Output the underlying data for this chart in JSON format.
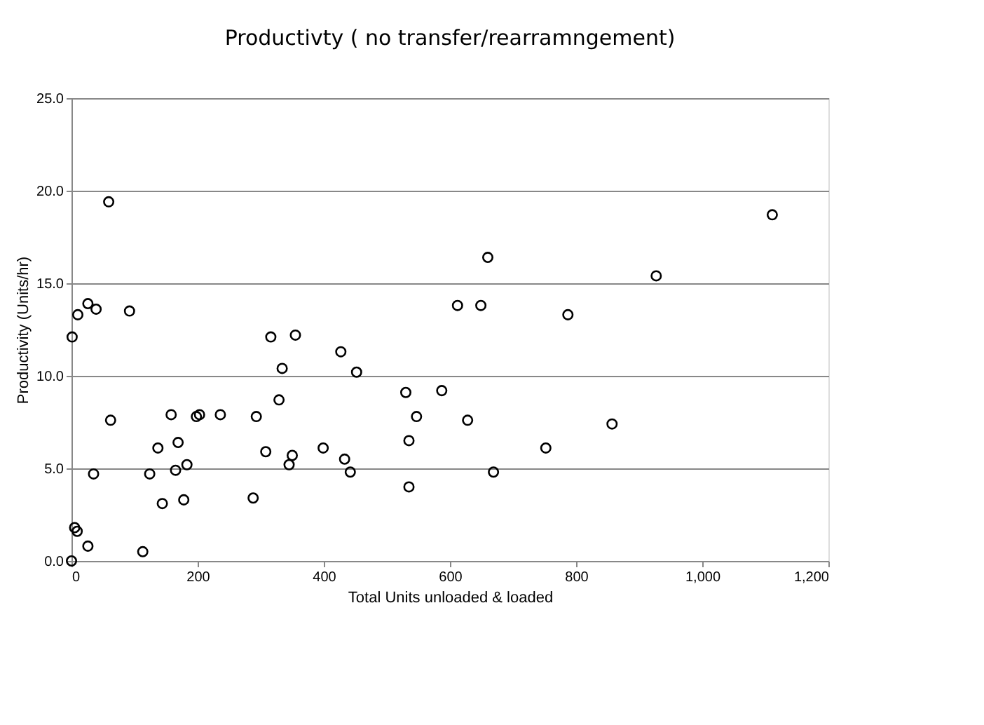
{
  "chart_data": {
    "type": "scatter",
    "title": "Productivty ( no transfer/rearramngement)",
    "xlabel": "Total Units unloaded & loaded",
    "ylabel": "Productivity (Units/hr)",
    "x": [
      0,
      1,
      10,
      26,
      39,
      59,
      92,
      5,
      9,
      26,
      62,
      35,
      113,
      124,
      137,
      144,
      158,
      165,
      169,
      178,
      183,
      198,
      203,
      236,
      288,
      293,
      308,
      316,
      329,
      334,
      345,
      350,
      355,
      399,
      427,
      433,
      442,
      452,
      530,
      535,
      535,
      547,
      587,
      612,
      649,
      660,
      628,
      669,
      787,
      752,
      857,
      927,
      1111
    ],
    "series": [
      {
        "color": "#000000",
        "values": [
          0,
          12.1,
          13.3,
          13.9,
          13.6,
          19.4,
          13.5,
          1.8,
          1.6,
          0.8,
          7.6,
          4.7,
          0.5,
          4.7,
          6.1,
          3.1,
          7.9,
          4.9,
          6.4,
          3.3,
          5.2,
          7.8,
          7.9,
          7.9,
          3.4,
          7.8,
          5.9,
          12.1,
          8.7,
          10.4,
          5.2,
          5.7,
          12.2,
          6.1,
          11.3,
          5.5,
          4.8,
          10.2,
          9.1,
          6.5,
          4.0,
          7.8,
          9.2,
          13.8,
          13.8,
          16.4,
          7.6,
          4.8,
          13.3,
          6.1,
          7.4,
          15.4,
          18.7
        ]
      }
    ],
    "xlim": [
      0,
      1200
    ],
    "xticks": [
      0,
      200,
      400,
      600,
      800,
      {
        "value": 1000,
        "label": "1,000"
      },
      {
        "value": 1200,
        "label": "1,200"
      }
    ],
    "ylim": [
      0,
      25
    ],
    "yticks": [
      {
        "value": 0,
        "label": "0.0"
      },
      {
        "value": 5,
        "label": "5.0"
      },
      {
        "value": 10,
        "label": "10.0"
      },
      {
        "value": 15,
        "label": "15.0"
      },
      {
        "value": 20,
        "label": "20.0"
      },
      {
        "value": 25,
        "label": "25.0"
      }
    ],
    "grid": "y",
    "marker": "circle",
    "legend": false
  }
}
